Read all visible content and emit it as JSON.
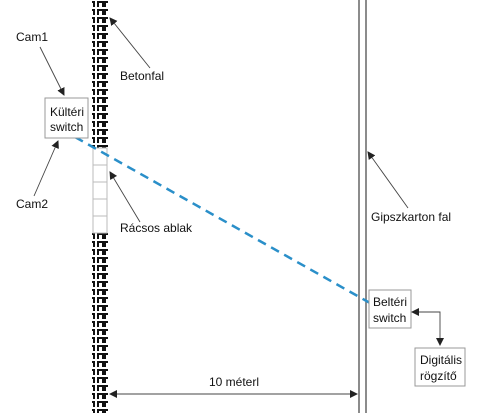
{
  "labels": {
    "cam1": "Cam1",
    "cam2": "Cam2",
    "betonfal": "Betonfal",
    "kulteri_switch_line1": "Kültéri",
    "kulteri_switch_line2": "switch",
    "racsos_ablak": "Rácsos ablak",
    "gipszkarton_fal": "Gipszkarton fal",
    "belteri_switch_line1": "Beltéri",
    "belteri_switch_line2": "switch",
    "digitalis_line1": "Digitális",
    "digitalis_line2": "rögzítő",
    "distance": "10 méterl"
  },
  "colors": {
    "link": "#2a8fc9",
    "line": "#555555",
    "wall": "#222222",
    "box_border": "#999999"
  }
}
